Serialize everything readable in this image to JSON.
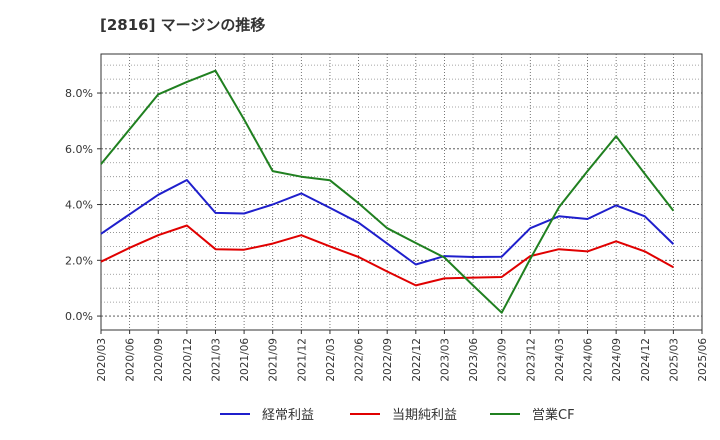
{
  "chart_data": {
    "type": "line",
    "title": "[2816]  マージンの推移",
    "xlabel": "",
    "ylabel": "",
    "ylim": [
      -0.5,
      9.4
    ],
    "yticks": [
      0.0,
      2.0,
      4.0,
      6.0,
      8.0
    ],
    "ytick_labels": [
      "0.0%",
      "2.0%",
      "4.0%",
      "6.0%",
      "8.0%"
    ],
    "categories": [
      "2020/03",
      "2020/06",
      "2020/09",
      "2020/12",
      "2021/03",
      "2021/06",
      "2021/09",
      "2021/12",
      "2022/03",
      "2022/06",
      "2022/09",
      "2022/12",
      "2023/03",
      "2023/06",
      "2023/09",
      "2023/12",
      "2024/03",
      "2024/06",
      "2024/09",
      "2024/12",
      "2025/03",
      "2025/06"
    ],
    "grid": true,
    "legend_position": "bottom",
    "series": [
      {
        "name": "経常利益",
        "color": "#1f1fcc",
        "values": [
          2.95,
          3.65,
          4.35,
          4.88,
          3.7,
          3.68,
          4.0,
          4.4,
          3.88,
          3.35,
          2.6,
          1.85,
          2.15,
          2.12,
          2.13,
          3.15,
          3.58,
          3.48,
          3.97,
          3.58,
          2.58,
          null
        ]
      },
      {
        "name": "当期純利益",
        "color": "#e00000",
        "values": [
          1.95,
          2.45,
          2.9,
          3.25,
          2.4,
          2.38,
          2.6,
          2.9,
          2.5,
          2.12,
          1.6,
          1.1,
          1.35,
          1.38,
          1.4,
          2.15,
          2.4,
          2.32,
          2.68,
          2.32,
          1.75,
          null
        ]
      },
      {
        "name": "営業CF",
        "color": "#208020",
        "values": [
          5.45,
          6.7,
          7.95,
          8.4,
          8.8,
          7.05,
          5.2,
          5.0,
          4.87,
          4.05,
          3.15,
          2.62,
          2.1,
          1.1,
          0.12,
          2.05,
          3.9,
          5.2,
          6.45,
          5.1,
          3.78,
          null
        ]
      }
    ]
  }
}
